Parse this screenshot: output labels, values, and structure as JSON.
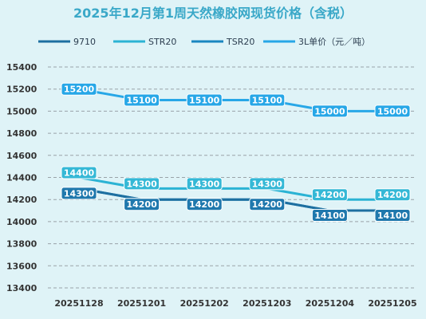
{
  "chart_data": {
    "type": "line",
    "title": "2025年12月第1周天然橡胶网现货价格（含税）",
    "categories": [
      "20251128",
      "20251201",
      "20251202",
      "20251203",
      "20251204",
      "20251205"
    ],
    "ylim": [
      13400,
      15400
    ],
    "yticks": [
      "15400",
      "15200",
      "15000",
      "14800",
      "14600",
      "14400",
      "14200",
      "14000",
      "13800",
      "13600",
      "13400"
    ],
    "grid": true,
    "legend_position": "top",
    "series": [
      {
        "name": "9710",
        "color": "#1d6fa0",
        "values": [
          14300,
          14200,
          14200,
          14200,
          14100,
          14100
        ]
      },
      {
        "name": "STR20",
        "color": "#2bb3d4",
        "values": [
          14400,
          14300,
          14300,
          14300,
          14200,
          14200
        ]
      },
      {
        "name": "TSR20",
        "color": "#1a86c0",
        "values": [
          14300,
          14200,
          14200,
          14200,
          14100,
          14100
        ]
      },
      {
        "name": "3L单价（元／吨）",
        "color": "#27a7e7",
        "values": [
          15200,
          15100,
          15100,
          15100,
          15000,
          15000
        ]
      }
    ],
    "data_labels": [
      {
        "series": 3,
        "index": 0,
        "text": "15200"
      },
      {
        "series": 3,
        "index": 1,
        "text": "15100"
      },
      {
        "series": 3,
        "index": 2,
        "text": "15100"
      },
      {
        "series": 3,
        "index": 3,
        "text": "15100"
      },
      {
        "series": 3,
        "index": 4,
        "text": "15000"
      },
      {
        "series": 3,
        "index": 5,
        "text": "15000"
      },
      {
        "series": 1,
        "index": 0,
        "text": "14400"
      },
      {
        "series": 1,
        "index": 1,
        "text": "14300"
      },
      {
        "series": 1,
        "index": 2,
        "text": "14300"
      },
      {
        "series": 1,
        "index": 3,
        "text": "14300"
      },
      {
        "series": 1,
        "index": 4,
        "text": "14200"
      },
      {
        "series": 1,
        "index": 5,
        "text": "14200"
      },
      {
        "series": 0,
        "index": 0,
        "text": "14300"
      },
      {
        "series": 0,
        "index": 1,
        "text": "14200"
      },
      {
        "series": 0,
        "index": 2,
        "text": "14200"
      },
      {
        "series": 0,
        "index": 3,
        "text": "14200"
      },
      {
        "series": 0,
        "index": 4,
        "text": "14100"
      },
      {
        "series": 0,
        "index": 5,
        "text": "14100"
      }
    ]
  }
}
